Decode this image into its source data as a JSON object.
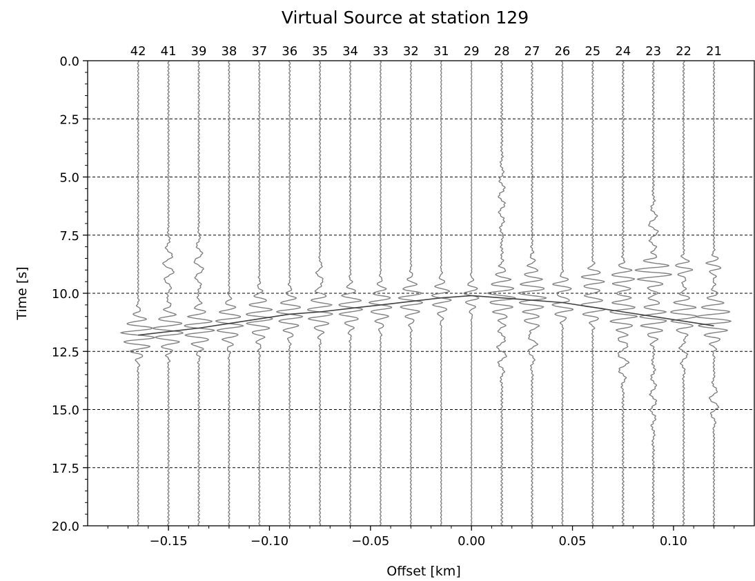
{
  "chart_data": {
    "type": "line",
    "title": "Virtual Source at station 129",
    "xlabel": "Offset [km]",
    "ylabel": "Time [s]",
    "xlim": [
      -0.19,
      0.14
    ],
    "ylim": [
      20.0,
      0.0
    ],
    "y_inverted": true,
    "grid": "horizontal dashed",
    "x_ticks": [
      {
        "value": -0.15,
        "label": "−0.15"
      },
      {
        "value": -0.1,
        "label": "−0.10"
      },
      {
        "value": -0.05,
        "label": "−0.05"
      },
      {
        "value": 0.0,
        "label": "0.00"
      },
      {
        "value": 0.05,
        "label": "0.05"
      },
      {
        "value": 0.1,
        "label": "0.10"
      }
    ],
    "y_ticks": [
      {
        "value": 0.0,
        "label": "0.0"
      },
      {
        "value": 2.5,
        "label": "2.5"
      },
      {
        "value": 5.0,
        "label": "5.0"
      },
      {
        "value": 7.5,
        "label": "7.5"
      },
      {
        "value": 10.0,
        "label": "10.0"
      },
      {
        "value": 12.5,
        "label": "12.5"
      },
      {
        "value": 15.0,
        "label": "15.0"
      },
      {
        "value": 17.5,
        "label": "17.5"
      },
      {
        "value": 20.0,
        "label": "20.0"
      }
    ],
    "trace_color": "#808080",
    "moveout_color": "#404040",
    "traces": [
      {
        "station": "42",
        "offset": -0.165,
        "arrival": 11.8,
        "packets": [
          [
            11.8,
            2.2,
            0.8,
            0.4
          ]
        ],
        "noise": 0.07
      },
      {
        "station": "41",
        "offset": -0.15,
        "arrival": 11.65,
        "packets": [
          [
            11.6,
            2.0,
            0.8,
            0.4
          ],
          [
            8.9,
            0.7,
            1.0,
            0.7
          ]
        ],
        "noise": 0.08
      },
      {
        "station": "39",
        "offset": -0.135,
        "arrival": 11.5,
        "packets": [
          [
            11.5,
            2.0,
            0.8,
            0.4
          ],
          [
            8.8,
            0.6,
            1.0,
            0.7
          ]
        ],
        "noise": 0.08
      },
      {
        "station": "38",
        "offset": -0.12,
        "arrival": 11.3,
        "packets": [
          [
            11.3,
            1.8,
            0.8,
            0.4
          ]
        ],
        "noise": 0.07
      },
      {
        "station": "37",
        "offset": -0.105,
        "arrival": 11.1,
        "packets": [
          [
            11.0,
            1.8,
            0.9,
            0.4
          ]
        ],
        "noise": 0.07
      },
      {
        "station": "36",
        "offset": -0.09,
        "arrival": 10.9,
        "packets": [
          [
            10.9,
            1.7,
            0.8,
            0.4
          ]
        ],
        "noise": 0.07
      },
      {
        "station": "35",
        "offset": -0.075,
        "arrival": 10.8,
        "packets": [
          [
            10.8,
            1.7,
            0.8,
            0.4
          ],
          [
            9.3,
            0.5,
            0.6,
            0.7
          ]
        ],
        "noise": 0.07
      },
      {
        "station": "34",
        "offset": -0.06,
        "arrival": 10.65,
        "packets": [
          [
            10.6,
            1.6,
            0.8,
            0.4
          ]
        ],
        "noise": 0.07
      },
      {
        "station": "33",
        "offset": -0.045,
        "arrival": 10.5,
        "packets": [
          [
            10.5,
            1.5,
            0.8,
            0.4
          ]
        ],
        "noise": 0.06
      },
      {
        "station": "32",
        "offset": -0.03,
        "arrival": 10.35,
        "packets": [
          [
            10.3,
            1.6,
            0.8,
            0.4
          ]
        ],
        "noise": 0.06
      },
      {
        "station": "31",
        "offset": -0.015,
        "arrival": 10.2,
        "packets": [
          [
            10.2,
            1.3,
            0.7,
            0.4
          ]
        ],
        "noise": 0.05
      },
      {
        "station": "29",
        "offset": 0.0,
        "arrival": 10.1,
        "packets": [
          [
            10.1,
            1.0,
            0.6,
            0.4
          ]
        ],
        "noise": 0.04
      },
      {
        "station": "28",
        "offset": 0.015,
        "arrival": 10.2,
        "packets": [
          [
            10.1,
            1.8,
            1.0,
            0.4
          ],
          [
            12.5,
            0.6,
            1.0,
            0.7
          ],
          [
            6.0,
            0.4,
            1.5,
            0.7
          ]
        ],
        "noise": 0.1
      },
      {
        "station": "27",
        "offset": 0.03,
        "arrival": 10.3,
        "packets": [
          [
            10.1,
            1.8,
            1.2,
            0.4
          ],
          [
            12.0,
            0.6,
            1.0,
            0.7
          ]
        ],
        "noise": 0.09
      },
      {
        "station": "26",
        "offset": 0.045,
        "arrival": 10.4,
        "packets": [
          [
            9.7,
            1.3,
            0.4,
            0.4
          ],
          [
            10.6,
            1.4,
            0.5,
            0.4
          ]
        ],
        "noise": 0.07
      },
      {
        "station": "25",
        "offset": 0.06,
        "arrival": 10.6,
        "packets": [
          [
            9.4,
            1.5,
            0.5,
            0.4
          ],
          [
            10.6,
            1.6,
            0.6,
            0.4
          ]
        ],
        "noise": 0.08
      },
      {
        "station": "24",
        "offset": 0.075,
        "arrival": 10.8,
        "packets": [
          [
            9.3,
            1.5,
            0.5,
            0.4
          ],
          [
            10.9,
            1.8,
            0.9,
            0.4
          ],
          [
            12.8,
            0.7,
            1.0,
            0.7
          ]
        ],
        "noise": 0.1
      },
      {
        "station": "23",
        "offset": 0.09,
        "arrival": 11.0,
        "packets": [
          [
            9.1,
            2.5,
            0.6,
            0.4
          ],
          [
            11.1,
            1.8,
            0.8,
            0.4
          ],
          [
            7.2,
            0.6,
            1.0,
            0.7
          ],
          [
            14.5,
            0.4,
            1.5,
            0.7
          ]
        ],
        "noise": 0.1
      },
      {
        "station": "22",
        "offset": 0.105,
        "arrival": 11.2,
        "packets": [
          [
            8.9,
            1.2,
            0.4,
            0.4
          ],
          [
            10.9,
            1.8,
            0.8,
            0.4
          ],
          [
            12.5,
            0.5,
            0.8,
            0.7
          ]
        ],
        "noise": 0.09
      },
      {
        "station": "21",
        "offset": 0.12,
        "arrival": 11.4,
        "packets": [
          [
            8.8,
            1.0,
            0.4,
            0.4
          ],
          [
            11.1,
            2.3,
            0.9,
            0.4
          ],
          [
            14.7,
            0.6,
            0.8,
            0.7
          ]
        ],
        "noise": 0.08
      }
    ]
  }
}
